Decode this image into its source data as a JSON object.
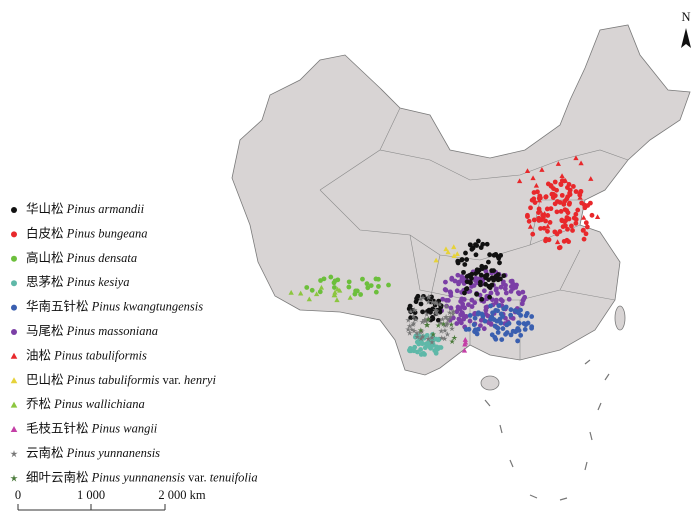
{
  "legend": [
    {
      "cn": "华山松",
      "latin": "Pinus armandii",
      "marker": "circle",
      "color": "#111111"
    },
    {
      "cn": "白皮松",
      "latin": "Pinus bungeana",
      "marker": "circle",
      "color": "#e8282b"
    },
    {
      "cn": "高山松",
      "latin": "Pinus densata",
      "marker": "circle",
      "color": "#6cbf3c"
    },
    {
      "cn": "思茅松",
      "latin": "Pinus kesiya",
      "marker": "circle",
      "color": "#5fb8a8"
    },
    {
      "cn": "华南五针松",
      "latin": "Pinus kwangtungensis",
      "marker": "circle",
      "color": "#3a5fb0"
    },
    {
      "cn": "马尾松",
      "latin": "Pinus massoniana",
      "marker": "circle",
      "color": "#7b3fa6"
    },
    {
      "cn": "油松",
      "latin": "Pinus tabuliformis",
      "marker": "triangle",
      "color": "#e8282b"
    },
    {
      "cn": "巴山松",
      "latin": "Pinus tabuliformis",
      "rank": "var.",
      "infra": "henryi",
      "marker": "triangle",
      "color": "#e6d23a"
    },
    {
      "cn": "乔松",
      "latin": "Pinus wallichiana",
      "marker": "triangle",
      "color": "#8cc63f"
    },
    {
      "cn": "毛枝五针松",
      "latin": "Pinus wangii",
      "marker": "triangle",
      "color": "#c43fa6"
    },
    {
      "cn": "云南松",
      "latin": "Pinus yunnanensis",
      "marker": "star",
      "color": "#777777"
    },
    {
      "cn": "细叶云南松",
      "latin": "Pinus yunnanensis",
      "rank": "var.",
      "infra": "tenuifolia",
      "marker": "star",
      "color": "#4a7a3a"
    }
  ],
  "scale_bar": {
    "labels": [
      "0",
      "1 000",
      "2 000 km"
    ]
  },
  "north_arrow": {
    "label": "N"
  }
}
